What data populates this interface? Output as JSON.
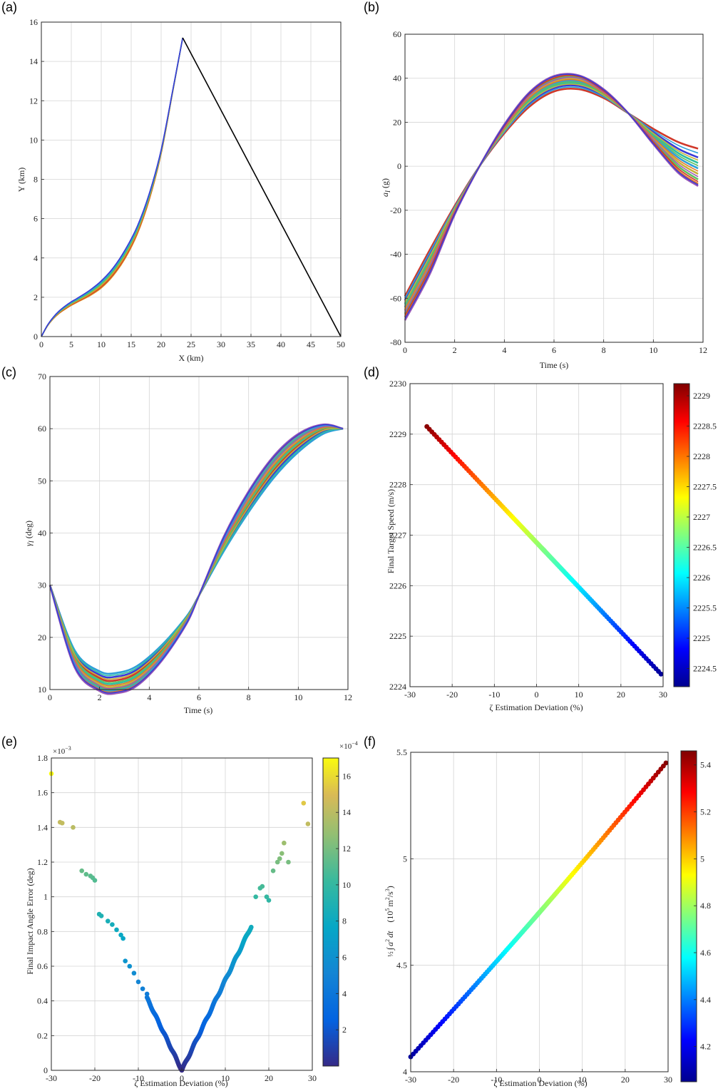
{
  "figure": {
    "panels": [
      "(a)",
      "(b)",
      "(c)",
      "(d)",
      "(e)",
      "(f)"
    ]
  },
  "chart_data": [
    {
      "panel": "(a)",
      "type": "line",
      "xlabel": "X (km)",
      "ylabel": "Y (km)",
      "xlim": [
        0,
        50
      ],
      "ylim": [
        0,
        16
      ],
      "xticks": [
        "0",
        "5",
        "10",
        "15",
        "20",
        "25",
        "30",
        "35",
        "40",
        "45",
        "50"
      ],
      "yticks": [
        "0",
        "2",
        "4",
        "6",
        "8",
        "10",
        "12",
        "14",
        "16"
      ],
      "grid": true,
      "interceptor_family": {
        "count": 8,
        "colors": [
          "#3b3bd6",
          "#2f9fd8",
          "#2fbfa0",
          "#5fc05f",
          "#c7b23a",
          "#e07a2a",
          "#d0382a",
          "#e0a020"
        ],
        "x": [
          0,
          1,
          2,
          3,
          4,
          5,
          6,
          8,
          10,
          12,
          14,
          16,
          18,
          20,
          22,
          23.6
        ],
        "y_mean": [
          0,
          0.55,
          0.95,
          1.25,
          1.48,
          1.68,
          1.85,
          2.2,
          2.65,
          3.3,
          4.2,
          5.4,
          7.1,
          9.4,
          12.6,
          15.2
        ],
        "y_spread": [
          0,
          0.02,
          0.04,
          0.06,
          0.08,
          0.09,
          0.1,
          0.14,
          0.18,
          0.2,
          0.22,
          0.2,
          0.16,
          0.1,
          0.04,
          0
        ]
      },
      "target_path": {
        "color": "#000000",
        "x": [
          23.6,
          50
        ],
        "y": [
          15.2,
          0
        ]
      }
    },
    {
      "panel": "(b)",
      "type": "line",
      "xlabel": "Time (s)",
      "ylabel": "a_I (g)",
      "ylabel_main": "a",
      "ylabel_sub": "I",
      "ylabel_unit": " (g)",
      "xlim": [
        0,
        12
      ],
      "ylim": [
        -80,
        60
      ],
      "xticks": [
        "0",
        "2",
        "4",
        "6",
        "8",
        "10",
        "12"
      ],
      "yticks": [
        "-80",
        "-60",
        "-40",
        "-20",
        "0",
        "20",
        "40",
        "60"
      ],
      "grid": true,
      "family": {
        "count": 8,
        "colors": [
          "#d0382a",
          "#3b3bd6",
          "#2fbfa0",
          "#2f9fd8",
          "#c7b23a",
          "#5fc05f",
          "#e07a2a",
          "#9b59b6"
        ],
        "t": [
          0,
          1,
          2,
          3,
          4,
          5,
          6,
          7,
          8,
          9,
          10,
          11,
          11.8
        ],
        "curves": [
          [
            -59,
            -38,
            -18,
            0,
            15,
            27,
            34,
            35,
            31,
            24,
            17,
            11,
            8
          ],
          [
            -61,
            -40,
            -19,
            0,
            16,
            28.5,
            35.5,
            36.5,
            32,
            24,
            15.5,
            8,
            4
          ],
          [
            -62.5,
            -41.5,
            -19.5,
            0,
            16.5,
            29.5,
            36.5,
            37.5,
            32.5,
            24,
            14.5,
            6,
            1.5
          ],
          [
            -64,
            -43,
            -20,
            0,
            17,
            30.5,
            37.5,
            38.5,
            33,
            24,
            13.5,
            4,
            -1
          ],
          [
            -65.5,
            -44.5,
            -20.5,
            0,
            17.5,
            31.5,
            38.5,
            39.5,
            33.5,
            24,
            12.5,
            2,
            -3.5
          ],
          [
            -67,
            -46,
            -21,
            0,
            18,
            32.5,
            39.5,
            40.5,
            34,
            24,
            11.5,
            0,
            -6
          ],
          [
            -68.5,
            -47.5,
            -21.5,
            0,
            18.5,
            33,
            40.5,
            41,
            34.5,
            24,
            10.5,
            -2,
            -8
          ],
          [
            -70,
            -49,
            -22,
            0,
            19,
            33.5,
            41,
            41.3,
            35,
            24,
            10,
            -3,
            -9
          ]
        ]
      }
    },
    {
      "panel": "(c)",
      "type": "line",
      "xlabel": "Time (s)",
      "ylabel": "γ_I (deg)",
      "ylabel_main": "γ",
      "ylabel_sub": "I",
      "ylabel_unit": " (deg)",
      "xlim": [
        0,
        12
      ],
      "ylim": [
        10,
        70
      ],
      "xticks": [
        "0",
        "2",
        "4",
        "6",
        "8",
        "10",
        "12"
      ],
      "yticks": [
        "10",
        "20",
        "30",
        "40",
        "50",
        "60",
        "70"
      ],
      "grid": true,
      "family": {
        "count": 8,
        "colors": [
          "#2f9fd8",
          "#3b3bd6",
          "#d0382a",
          "#2fbfa0",
          "#c7b23a",
          "#5fc05f",
          "#e07a2a",
          "#9b59b6"
        ],
        "t": [
          0,
          1,
          2,
          2.7,
          3.5,
          4.5,
          5.5,
          6,
          7,
          8,
          9,
          10,
          11,
          11.8
        ],
        "curves": [
          [
            30,
            17.5,
            13.5,
            13.2,
            14.5,
            18.5,
            24,
            28,
            36.5,
            44,
            50.5,
            55.5,
            59,
            60
          ],
          [
            30,
            17,
            12.8,
            12.5,
            13.8,
            18,
            23.8,
            28,
            37,
            44.7,
            51.3,
            56.2,
            59.5,
            60
          ],
          [
            30,
            16.5,
            12.2,
            11.8,
            13.2,
            17.5,
            23.6,
            28,
            37.4,
            45.3,
            52,
            56.8,
            59.8,
            60
          ],
          [
            30,
            16,
            11.6,
            11.2,
            12.6,
            17,
            23.4,
            28,
            37.8,
            45.9,
            52.6,
            57.3,
            60.1,
            60
          ],
          [
            30,
            15.5,
            11,
            10.6,
            12,
            16.5,
            23.2,
            28,
            38.2,
            46.5,
            53.2,
            57.8,
            60.3,
            60
          ],
          [
            30,
            15,
            10.5,
            10.1,
            11.5,
            16.1,
            23,
            28,
            38.6,
            47.1,
            53.8,
            58.3,
            60.5,
            60
          ],
          [
            30,
            14.6,
            10.1,
            9.7,
            11.1,
            15.8,
            22.8,
            28,
            39,
            47.6,
            54.3,
            58.7,
            60.7,
            60
          ],
          [
            30,
            14.2,
            9.7,
            9.3,
            10.7,
            15.5,
            22.6,
            28,
            39.3,
            48,
            54.7,
            59,
            60.8,
            60
          ]
        ]
      }
    },
    {
      "panel": "(d)",
      "type": "scatter",
      "xlabel": "ζ Estimation Deviation (%)",
      "ylabel": "Final Target Speed (m/s)",
      "xlim": [
        -30,
        30
      ],
      "ylim": [
        2224,
        2230
      ],
      "xticks": [
        "-30",
        "-20",
        "-10",
        "0",
        "10",
        "20",
        "30"
      ],
      "yticks": [
        "2224",
        "2225",
        "2226",
        "2227",
        "2228",
        "2229",
        "2230"
      ],
      "grid": true,
      "colormap": "jet",
      "colorbar": {
        "min": 2224.2,
        "max": 2229.2,
        "ticks": [
          "2224.5",
          "2225",
          "2225.5",
          "2226",
          "2226.5",
          "2227",
          "2227.5",
          "2228",
          "2228.5",
          "2229"
        ]
      },
      "points": {
        "x_min": -26,
        "x_max": 29.5,
        "y_at_x_min": 2229.15,
        "y_at_x_max": 2224.25,
        "count": 150
      }
    },
    {
      "panel": "(e)",
      "type": "scatter",
      "xlabel": "ζ Estimation Deviation (%)",
      "ylabel": "Final Impact Angle Error (deg)",
      "y_exponent_prefix": "×10",
      "y_exponent_power": "−3",
      "xlim": [
        -30,
        30
      ],
      "ylim": [
        0,
        1.8
      ],
      "xticks": [
        "-30",
        "-20",
        "-10",
        "0",
        "10",
        "20",
        "30"
      ],
      "yticks": [
        "0",
        "0.2",
        "0.4",
        "0.6",
        "0.8",
        "1",
        "1.2",
        "1.4",
        "1.6",
        "1.8"
      ],
      "grid": true,
      "colormap": "parula",
      "colorbar": {
        "min": 0,
        "max": 17,
        "exponent_prefix": "×10",
        "exponent_power": "−4",
        "ticks": [
          "2",
          "4",
          "6",
          "8",
          "10",
          "12",
          "14",
          "16"
        ]
      },
      "points": {
        "v_shape": {
          "left_x_min": -8,
          "right_x_max": 16,
          "slope": 0.052
        },
        "outliers": [
          [
            -30,
            1.71
          ],
          [
            -28,
            1.43
          ],
          [
            -27.5,
            1.425
          ],
          [
            -25,
            1.4
          ],
          [
            -23,
            1.15
          ],
          [
            -22,
            1.13
          ],
          [
            -21,
            1.12
          ],
          [
            -20.5,
            1.11
          ],
          [
            -20,
            1.095
          ],
          [
            -19,
            0.9
          ],
          [
            -18.5,
            0.89
          ],
          [
            -17,
            0.86
          ],
          [
            -16,
            0.84
          ],
          [
            -15,
            0.81
          ],
          [
            -14,
            0.78
          ],
          [
            -13.5,
            0.76
          ],
          [
            -13,
            0.63
          ],
          [
            -12,
            0.6
          ],
          [
            -11,
            0.56
          ],
          [
            -10,
            0.51
          ],
          [
            -9,
            0.47
          ],
          [
            -8,
            0.44
          ],
          [
            17,
            1.0
          ],
          [
            18,
            1.05
          ],
          [
            18.5,
            1.06
          ],
          [
            19.5,
            1.0
          ],
          [
            20,
            0.98
          ],
          [
            21,
            1.15
          ],
          [
            22,
            1.2
          ],
          [
            22.5,
            1.22
          ],
          [
            23,
            1.25
          ],
          [
            23.5,
            1.31
          ],
          [
            24.5,
            1.2
          ],
          [
            28,
            1.54
          ],
          [
            29,
            1.42
          ]
        ]
      }
    },
    {
      "panel": "(f)",
      "type": "scatter",
      "xlabel": "ζ Estimation Deviation (%)",
      "ylabel": "½ ∫ a² dt (10⁵ m²/s³)",
      "ylabel_half": "½",
      "ylabel_integral": "∫",
      "ylabel_var": "a",
      "ylabel_sq": "2",
      "ylabel_dt": "dt",
      "ylabel_unit_open": "(10",
      "ylabel_unit_pow5": "5",
      "ylabel_unit_m": "m",
      "ylabel_unit_slash": "/s",
      "ylabel_unit_pow3": "3",
      "ylabel_unit_close": ")",
      "xlim": [
        -30,
        30
      ],
      "ylim": [
        4,
        5.5
      ],
      "xticks": [
        "-30",
        "-20",
        "-10",
        "0",
        "10",
        "20",
        "30"
      ],
      "yticks": [
        "4",
        "4.5",
        "5",
        "5.5"
      ],
      "grid": true,
      "colormap": "jet",
      "colorbar": {
        "min": 4.05,
        "max": 5.46,
        "ticks": [
          "4.2",
          "4.4",
          "4.6",
          "4.8",
          "5",
          "5.2",
          "5.4"
        ]
      },
      "points": {
        "x_min": -30,
        "x_max": 29.5,
        "y_at_x_min": 4.07,
        "y_at_x_max": 5.45,
        "curvature": 0.018,
        "count": 150
      }
    }
  ]
}
